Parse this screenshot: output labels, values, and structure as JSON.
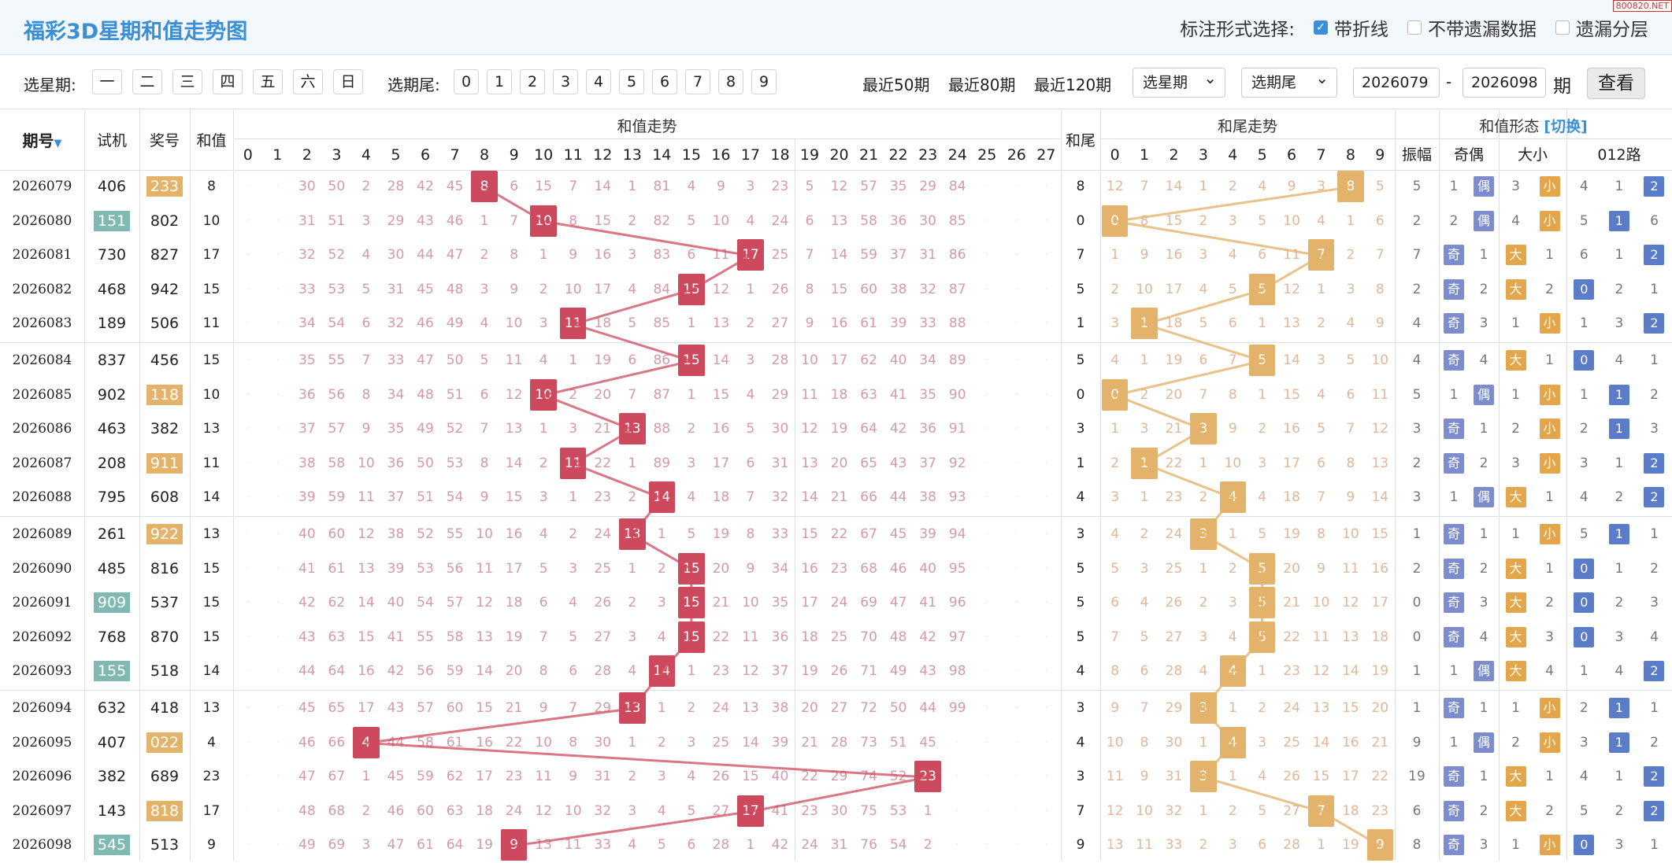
{
  "header": {
    "title": "福彩3D星期和值走势图",
    "opt_label": "标注形式选择:",
    "opts": [
      "带折线",
      "不带遗漏数据",
      "遗漏分层"
    ],
    "watermark": "800820.NET"
  },
  "filters": {
    "week_label": "选星期:",
    "week_days": [
      "一",
      "二",
      "三",
      "四",
      "五",
      "六",
      "日"
    ],
    "tail_label": "选期尾:",
    "tails": [
      "0",
      "1",
      "2",
      "3",
      "4",
      "5",
      "6",
      "7",
      "8",
      "9"
    ],
    "quick": [
      "最近50期",
      "最近80期",
      "最近120期"
    ],
    "sel_week": "选星期",
    "sel_tail": "选期尾",
    "from": "2026079",
    "dash": "-",
    "to": "2026098",
    "unit": "期",
    "query": "查看"
  },
  "headers": {
    "period": "期号",
    "sort": "▼",
    "test": "试机",
    "prize": "奖号",
    "sum": "和值",
    "sum_trend": "和值走势",
    "tail": "和尾",
    "tail_trend": "和尾走势",
    "shape": "和值形态",
    "switch": "[切换]",
    "amp": "振幅",
    "oe": "奇偶",
    "bs": "大小",
    "route": "012路"
  },
  "sum_cols": [
    "0",
    "1",
    "2",
    "3",
    "4",
    "5",
    "6",
    "7",
    "8",
    "9",
    "10",
    "11",
    "12",
    "13",
    "14",
    "15",
    "16",
    "17",
    "18",
    "19",
    "20",
    "21",
    "22",
    "23",
    "24",
    "25",
    "26",
    "27"
  ],
  "tail_cols": [
    "0",
    "1",
    "2",
    "3",
    "4",
    "5",
    "6",
    "7",
    "8",
    "9"
  ],
  "rows": [
    {
      "p": "2026079",
      "t": "406",
      "n": "233",
      "nh": 1,
      "th": 0,
      "s": 8,
      "tl": 8,
      "a": "5",
      "oe": [
        "1",
        "偶"
      ],
      "bs": [
        "3",
        "小"
      ],
      "r": [
        "4",
        "1",
        "2"
      ],
      "rt": 2,
      "sm": [
        "",
        "",
        "30",
        "50",
        "2",
        "28",
        "42",
        "45",
        "",
        "6",
        "15",
        "7",
        "14",
        "1",
        "81",
        "4",
        "9",
        "3",
        "23",
        "5",
        "12",
        "57",
        "35",
        "29",
        "84",
        "",
        "",
        ""
      ],
      "tm": [
        "12",
        "7",
        "14",
        "1",
        "2",
        "4",
        "9",
        "3",
        "",
        "5"
      ]
    },
    {
      "p": "2026080",
      "t": "151",
      "n": "802",
      "nh": 0,
      "th": 1,
      "s": 10,
      "tl": 0,
      "a": "2",
      "oe": [
        "2",
        "偶"
      ],
      "bs": [
        "4",
        "小"
      ],
      "r": [
        "5",
        "1",
        "6"
      ],
      "rt": 1,
      "sm": [
        "",
        "",
        "31",
        "51",
        "3",
        "29",
        "43",
        "46",
        "1",
        "7",
        "",
        "8",
        "15",
        "2",
        "82",
        "5",
        "10",
        "4",
        "24",
        "6",
        "13",
        "58",
        "36",
        "30",
        "85",
        "",
        "",
        ""
      ],
      "tm": [
        "",
        "8",
        "15",
        "2",
        "3",
        "5",
        "10",
        "4",
        "1",
        "6"
      ]
    },
    {
      "p": "2026081",
      "t": "730",
      "n": "827",
      "nh": 0,
      "th": 0,
      "s": 17,
      "tl": 7,
      "a": "7",
      "oe": [
        "奇",
        "1"
      ],
      "bs": [
        "大",
        "1"
      ],
      "r": [
        "6",
        "1",
        "2"
      ],
      "rt": 2,
      "sm": [
        "",
        "",
        "32",
        "52",
        "4",
        "30",
        "44",
        "47",
        "2",
        "8",
        "1",
        "9",
        "16",
        "3",
        "83",
        "6",
        "11",
        "",
        "25",
        "7",
        "14",
        "59",
        "37",
        "31",
        "86",
        "",
        "",
        ""
      ],
      "tm": [
        "1",
        "9",
        "16",
        "3",
        "4",
        "6",
        "11",
        "",
        "2",
        "7"
      ]
    },
    {
      "p": "2026082",
      "t": "468",
      "n": "942",
      "nh": 0,
      "th": 0,
      "s": 15,
      "tl": 5,
      "a": "2",
      "oe": [
        "奇",
        "2"
      ],
      "bs": [
        "大",
        "2"
      ],
      "r": [
        "0",
        "2",
        "1"
      ],
      "rt": 0,
      "sm": [
        "",
        "",
        "33",
        "53",
        "5",
        "31",
        "45",
        "48",
        "3",
        "9",
        "2",
        "10",
        "17",
        "4",
        "84",
        "",
        "12",
        "1",
        "26",
        "8",
        "15",
        "60",
        "38",
        "32",
        "87",
        "",
        "",
        ""
      ],
      "tm": [
        "2",
        "10",
        "17",
        "4",
        "5",
        "",
        "12",
        "1",
        "3",
        "8"
      ]
    },
    {
      "p": "2026083",
      "t": "189",
      "n": "506",
      "nh": 0,
      "th": 0,
      "s": 11,
      "tl": 1,
      "a": "4",
      "oe": [
        "奇",
        "3"
      ],
      "bs": [
        "1",
        "小"
      ],
      "r": [
        "1",
        "3",
        "2"
      ],
      "rt": 2,
      "sm": [
        "",
        "",
        "34",
        "54",
        "6",
        "32",
        "46",
        "49",
        "4",
        "10",
        "3",
        "",
        "18",
        "5",
        "85",
        "1",
        "13",
        "2",
        "27",
        "9",
        "16",
        "61",
        "39",
        "33",
        "88",
        "",
        "",
        ""
      ],
      "tm": [
        "3",
        "",
        "18",
        "5",
        "6",
        "1",
        "13",
        "2",
        "4",
        "9"
      ]
    },
    {
      "p": "2026084",
      "t": "837",
      "n": "456",
      "nh": 0,
      "th": 0,
      "s": 15,
      "tl": 5,
      "a": "4",
      "oe": [
        "奇",
        "4"
      ],
      "bs": [
        "大",
        "1"
      ],
      "r": [
        "0",
        "4",
        "1"
      ],
      "rt": 0,
      "sm": [
        "",
        "",
        "35",
        "55",
        "7",
        "33",
        "47",
        "50",
        "5",
        "11",
        "4",
        "1",
        "19",
        "6",
        "86",
        "",
        "14",
        "3",
        "28",
        "10",
        "17",
        "62",
        "40",
        "34",
        "89",
        "",
        "",
        ""
      ],
      "tm": [
        "4",
        "1",
        "19",
        "6",
        "7",
        "",
        "14",
        "3",
        "5",
        "10"
      ]
    },
    {
      "p": "2026085",
      "t": "902",
      "n": "118",
      "nh": 1,
      "th": 0,
      "s": 10,
      "tl": 0,
      "a": "5",
      "oe": [
        "1",
        "偶"
      ],
      "bs": [
        "1",
        "小"
      ],
      "r": [
        "1",
        "1",
        "2"
      ],
      "rt": 1,
      "sm": [
        "",
        "",
        "36",
        "56",
        "8",
        "34",
        "48",
        "51",
        "6",
        "12",
        "",
        "2",
        "20",
        "7",
        "87",
        "1",
        "15",
        "4",
        "29",
        "11",
        "18",
        "63",
        "41",
        "35",
        "90",
        "",
        "",
        ""
      ],
      "tm": [
        "",
        "2",
        "20",
        "7",
        "8",
        "1",
        "15",
        "4",
        "6",
        "11"
      ]
    },
    {
      "p": "2026086",
      "t": "463",
      "n": "382",
      "nh": 0,
      "th": 0,
      "s": 13,
      "tl": 3,
      "a": "3",
      "oe": [
        "奇",
        "1"
      ],
      "bs": [
        "2",
        "小"
      ],
      "r": [
        "2",
        "1",
        "3"
      ],
      "rt": 1,
      "sm": [
        "",
        "",
        "37",
        "57",
        "9",
        "35",
        "49",
        "52",
        "7",
        "13",
        "1",
        "3",
        "21",
        "",
        "88",
        "2",
        "16",
        "5",
        "30",
        "12",
        "19",
        "64",
        "42",
        "36",
        "91",
        "",
        "",
        ""
      ],
      "tm": [
        "1",
        "3",
        "21",
        "",
        "9",
        "2",
        "16",
        "5",
        "7",
        "12"
      ]
    },
    {
      "p": "2026087",
      "t": "208",
      "n": "911",
      "nh": 1,
      "th": 0,
      "s": 11,
      "tl": 1,
      "a": "2",
      "oe": [
        "奇",
        "2"
      ],
      "bs": [
        "3",
        "小"
      ],
      "r": [
        "3",
        "1",
        "2"
      ],
      "rt": 2,
      "sm": [
        "",
        "",
        "38",
        "58",
        "10",
        "36",
        "50",
        "53",
        "8",
        "14",
        "2",
        "",
        "22",
        "1",
        "89",
        "3",
        "17",
        "6",
        "31",
        "13",
        "20",
        "65",
        "43",
        "37",
        "92",
        "",
        "",
        ""
      ],
      "tm": [
        "2",
        "",
        "22",
        "1",
        "10",
        "3",
        "17",
        "6",
        "8",
        "13"
      ]
    },
    {
      "p": "2026088",
      "t": "795",
      "n": "608",
      "nh": 0,
      "th": 0,
      "s": 14,
      "tl": 4,
      "a": "3",
      "oe": [
        "1",
        "偶"
      ],
      "bs": [
        "大",
        "1"
      ],
      "r": [
        "4",
        "2",
        "2"
      ],
      "rt": 2,
      "sm": [
        "",
        "",
        "39",
        "59",
        "11",
        "37",
        "51",
        "54",
        "9",
        "15",
        "3",
        "1",
        "23",
        "2",
        "",
        "4",
        "18",
        "7",
        "32",
        "14",
        "21",
        "66",
        "44",
        "38",
        "93",
        "",
        "",
        ""
      ],
      "tm": [
        "3",
        "1",
        "23",
        "2",
        "",
        "4",
        "18",
        "7",
        "9",
        "14"
      ]
    },
    {
      "p": "2026089",
      "t": "261",
      "n": "922",
      "nh": 1,
      "th": 0,
      "s": 13,
      "tl": 3,
      "a": "1",
      "oe": [
        "奇",
        "1"
      ],
      "bs": [
        "1",
        "小"
      ],
      "r": [
        "5",
        "1",
        "1"
      ],
      "rt": 1,
      "sm": [
        "",
        "",
        "40",
        "60",
        "12",
        "38",
        "52",
        "55",
        "10",
        "16",
        "4",
        "2",
        "24",
        "",
        "1",
        "5",
        "19",
        "8",
        "33",
        "15",
        "22",
        "67",
        "45",
        "39",
        "94",
        "",
        "",
        ""
      ],
      "tm": [
        "4",
        "2",
        "24",
        "",
        "1",
        "5",
        "19",
        "8",
        "10",
        "15"
      ]
    },
    {
      "p": "2026090",
      "t": "485",
      "n": "816",
      "nh": 0,
      "th": 0,
      "s": 15,
      "tl": 5,
      "a": "2",
      "oe": [
        "奇",
        "2"
      ],
      "bs": [
        "大",
        "1"
      ],
      "r": [
        "0",
        "1",
        "2"
      ],
      "rt": 0,
      "sm": [
        "",
        "",
        "41",
        "61",
        "13",
        "39",
        "53",
        "56",
        "11",
        "17",
        "5",
        "3",
        "25",
        "1",
        "2",
        "",
        "20",
        "9",
        "34",
        "16",
        "23",
        "68",
        "46",
        "40",
        "95",
        "",
        "",
        ""
      ],
      "tm": [
        "5",
        "3",
        "25",
        "1",
        "2",
        "",
        "20",
        "9",
        "11",
        "16"
      ]
    },
    {
      "p": "2026091",
      "t": "909",
      "n": "537",
      "nh": 0,
      "th": 1,
      "s": 15,
      "tl": 5,
      "a": "0",
      "oe": [
        "奇",
        "3"
      ],
      "bs": [
        "大",
        "2"
      ],
      "r": [
        "0",
        "2",
        "3"
      ],
      "rt": 0,
      "sm": [
        "",
        "",
        "42",
        "62",
        "14",
        "40",
        "54",
        "57",
        "12",
        "18",
        "6",
        "4",
        "26",
        "2",
        "3",
        "",
        "21",
        "10",
        "35",
        "17",
        "24",
        "69",
        "47",
        "41",
        "96",
        "",
        "",
        ""
      ],
      "tm": [
        "6",
        "4",
        "26",
        "2",
        "3",
        "",
        "21",
        "10",
        "12",
        "17"
      ]
    },
    {
      "p": "2026092",
      "t": "768",
      "n": "870",
      "nh": 0,
      "th": 0,
      "s": 15,
      "tl": 5,
      "a": "0",
      "oe": [
        "奇",
        "4"
      ],
      "bs": [
        "大",
        "3"
      ],
      "r": [
        "0",
        "3",
        "4"
      ],
      "rt": 0,
      "sm": [
        "",
        "",
        "43",
        "63",
        "15",
        "41",
        "55",
        "58",
        "13",
        "19",
        "7",
        "5",
        "27",
        "3",
        "4",
        "",
        "22",
        "11",
        "36",
        "18",
        "25",
        "70",
        "48",
        "42",
        "97",
        "",
        "",
        ""
      ],
      "tm": [
        "7",
        "5",
        "27",
        "3",
        "4",
        "",
        "22",
        "11",
        "13",
        "18"
      ]
    },
    {
      "p": "2026093",
      "t": "155",
      "n": "518",
      "nh": 0,
      "th": 1,
      "s": 14,
      "tl": 4,
      "a": "1",
      "oe": [
        "1",
        "偶"
      ],
      "bs": [
        "大",
        "4"
      ],
      "r": [
        "1",
        "4",
        "2"
      ],
      "rt": 2,
      "sm": [
        "",
        "",
        "44",
        "64",
        "16",
        "42",
        "56",
        "59",
        "14",
        "20",
        "8",
        "6",
        "28",
        "4",
        "",
        "1",
        "23",
        "12",
        "37",
        "19",
        "26",
        "71",
        "49",
        "43",
        "98",
        "",
        "",
        ""
      ],
      "tm": [
        "8",
        "6",
        "28",
        "4",
        "",
        "1",
        "23",
        "12",
        "14",
        "19"
      ]
    },
    {
      "p": "2026094",
      "t": "632",
      "n": "418",
      "nh": 0,
      "th": 0,
      "s": 13,
      "tl": 3,
      "a": "1",
      "oe": [
        "奇",
        "1"
      ],
      "bs": [
        "1",
        "小"
      ],
      "r": [
        "2",
        "1",
        "1"
      ],
      "rt": 1,
      "sm": [
        "",
        "",
        "45",
        "65",
        "17",
        "43",
        "57",
        "60",
        "15",
        "21",
        "9",
        "7",
        "29",
        "",
        "1",
        "2",
        "24",
        "13",
        "38",
        "20",
        "27",
        "72",
        "50",
        "44",
        "99",
        "",
        "",
        ""
      ],
      "tm": [
        "9",
        "7",
        "29",
        "",
        "1",
        "2",
        "24",
        "13",
        "15",
        "20"
      ]
    },
    {
      "p": "2026095",
      "t": "407",
      "n": "022",
      "nh": 1,
      "th": 0,
      "s": 4,
      "tl": 4,
      "a": "9",
      "oe": [
        "1",
        "偶"
      ],
      "bs": [
        "2",
        "小"
      ],
      "r": [
        "3",
        "1",
        "2"
      ],
      "rt": 1,
      "sm": [
        "",
        "",
        "46",
        "66",
        "",
        "44",
        "58",
        "61",
        "16",
        "22",
        "10",
        "8",
        "30",
        "1",
        "2",
        "3",
        "25",
        "14",
        "39",
        "21",
        "28",
        "73",
        "51",
        "45",
        "",
        "",
        "",
        ""
      ],
      "tm": [
        "10",
        "8",
        "30",
        "1",
        "",
        "3",
        "25",
        "14",
        "16",
        "21"
      ]
    },
    {
      "p": "2026096",
      "t": "382",
      "n": "689",
      "nh": 0,
      "th": 0,
      "s": 23,
      "tl": 3,
      "a": "19",
      "oe": [
        "奇",
        "1"
      ],
      "bs": [
        "大",
        "1"
      ],
      "r": [
        "4",
        "1",
        "2"
      ],
      "rt": 2,
      "sm": [
        "",
        "",
        "47",
        "67",
        "1",
        "45",
        "59",
        "62",
        "17",
        "23",
        "11",
        "9",
        "31",
        "2",
        "3",
        "4",
        "26",
        "15",
        "40",
        "22",
        "29",
        "74",
        "52",
        "",
        "",
        "",
        "",
        ""
      ],
      "tm": [
        "11",
        "9",
        "31",
        "",
        "1",
        "4",
        "26",
        "15",
        "17",
        "22"
      ]
    },
    {
      "p": "2026097",
      "t": "143",
      "n": "818",
      "nh": 1,
      "th": 0,
      "s": 17,
      "tl": 7,
      "a": "6",
      "oe": [
        "奇",
        "2"
      ],
      "bs": [
        "大",
        "2"
      ],
      "r": [
        "5",
        "2",
        "2"
      ],
      "rt": 2,
      "sm": [
        "",
        "",
        "48",
        "68",
        "2",
        "46",
        "60",
        "63",
        "18",
        "24",
        "12",
        "10",
        "32",
        "3",
        "4",
        "5",
        "27",
        "",
        "41",
        "23",
        "30",
        "75",
        "53",
        "1",
        "",
        "",
        "",
        ""
      ],
      "tm": [
        "12",
        "10",
        "32",
        "1",
        "2",
        "5",
        "27",
        "",
        "18",
        "23"
      ]
    },
    {
      "p": "2026098",
      "t": "545",
      "n": "513",
      "nh": 0,
      "th": 1,
      "s": 9,
      "tl": 9,
      "a": "8",
      "oe": [
        "奇",
        "3"
      ],
      "bs": [
        "1",
        "小"
      ],
      "r": [
        "0",
        "3",
        "1"
      ],
      "rt": 0,
      "sm": [
        "",
        "",
        "49",
        "69",
        "3",
        "47",
        "61",
        "64",
        "19",
        "",
        "13",
        "11",
        "33",
        "4",
        "5",
        "6",
        "28",
        "1",
        "42",
        "24",
        "31",
        "76",
        "54",
        "2",
        "",
        "",
        "",
        ""
      ],
      "tm": [
        "13",
        "11",
        "33",
        "2",
        "3",
        "6",
        "28",
        "1",
        "19",
        ""
      ]
    }
  ]
}
